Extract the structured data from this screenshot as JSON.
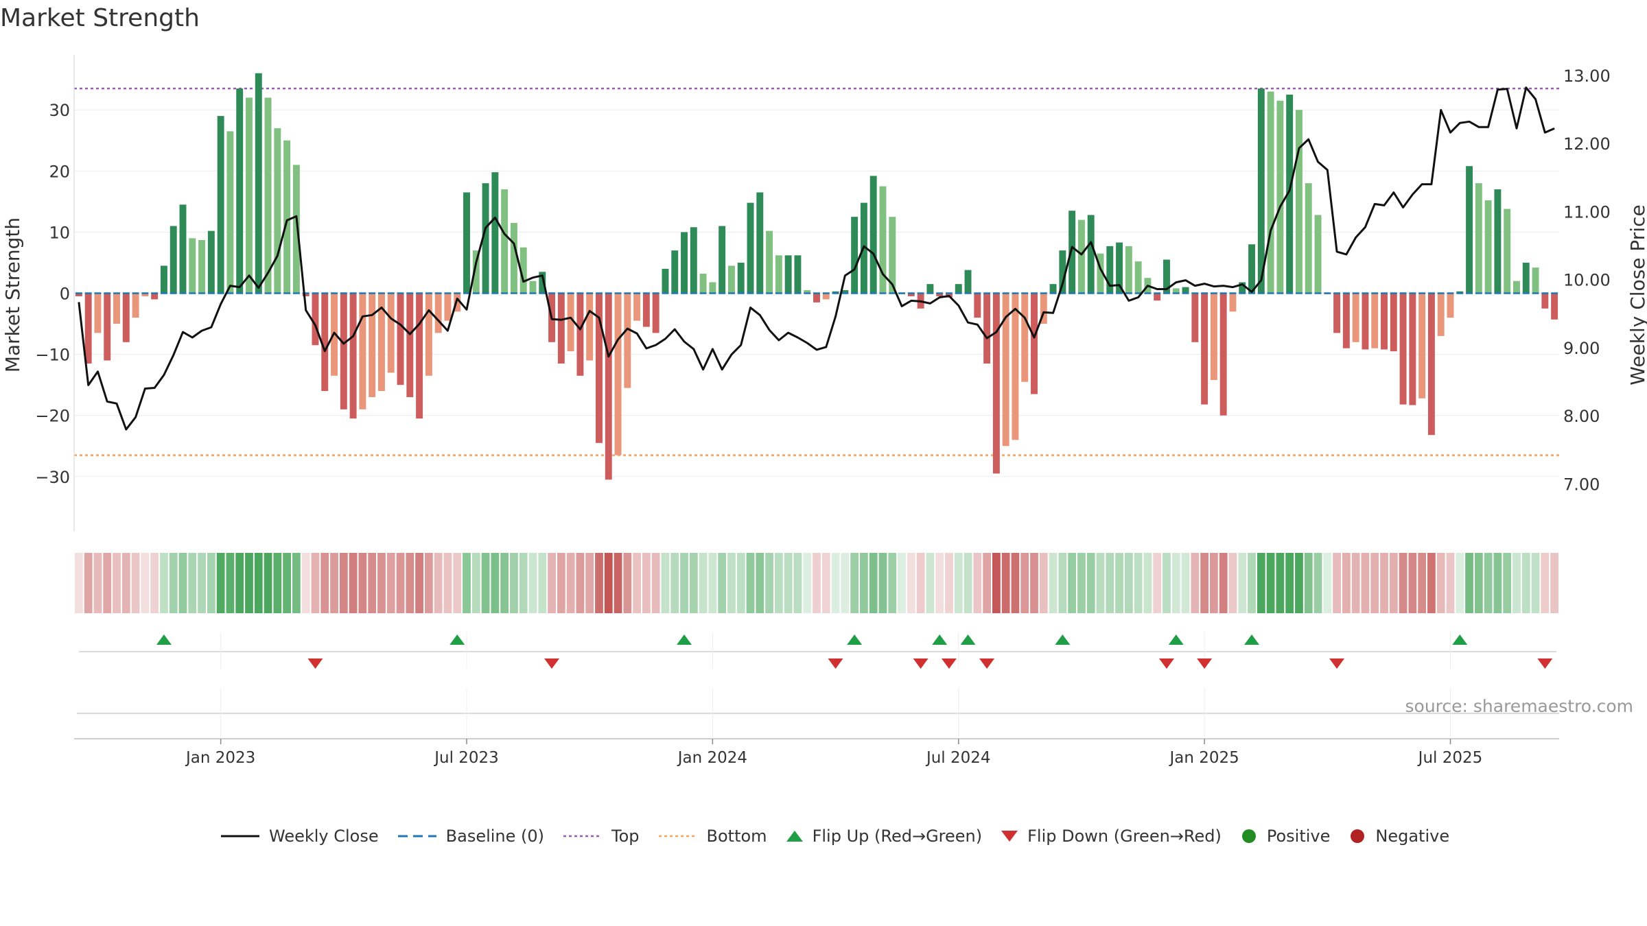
{
  "colors": {
    "green_strong": "#2e8b57",
    "green_light": "#80c080",
    "red_strong": "#cd5c5c",
    "red_light": "#e9967a",
    "top": "#9b59b6",
    "bottom": "#f4a460",
    "baseline": "#1f77b4",
    "flip_up": "#1f9e45",
    "flip_down": "#d03030",
    "close": "#111111",
    "positive": "#228b22",
    "negative": "#b22222"
  },
  "chart_data": {
    "type": "bar",
    "title": "Market Strength",
    "ylabel": "Market Strength",
    "y2label": "Weekly Close Price",
    "ylim": [
      -39,
      39
    ],
    "y2lim": [
      6.3,
      13.3
    ],
    "yticks": [
      "−30",
      "−20",
      "−10",
      "0",
      "10",
      "20",
      "30"
    ],
    "yticks_values": [
      -30,
      -20,
      -10,
      0,
      10,
      20,
      30
    ],
    "y2ticks": [
      "7.00",
      "8.00",
      "9.00",
      "10.00",
      "11.00",
      "12.00",
      "13.00"
    ],
    "y2ticks_values": [
      7,
      8,
      9,
      10,
      11,
      12,
      13
    ],
    "xticks": [
      "Jan 2023",
      "Jul 2023",
      "Jan 2024",
      "Jul 2024",
      "Jan 2025",
      "Jul 2025"
    ],
    "xticks_index": [
      15,
      41,
      67,
      93,
      119,
      145
    ],
    "top_line": 33.5,
    "bottom_line": -26.5,
    "strength": [
      -0.5,
      -11.5,
      -6.5,
      -11,
      -5,
      -8,
      -4,
      -0.5,
      -1,
      4.5,
      11,
      14.5,
      9,
      8.7,
      10.2,
      29,
      26.5,
      33.5,
      32,
      36,
      32,
      27,
      25,
      21,
      -0.5,
      -8.5,
      -16,
      -13.5,
      -19,
      -20.5,
      -19,
      -17,
      -16,
      -13,
      -15,
      -17,
      -20.5,
      -13.5,
      -6.5,
      -4.5,
      -3,
      16.5,
      7,
      18,
      19.8,
      17,
      11.5,
      7.5,
      2,
      3.5,
      -8,
      -11.5,
      -9.5,
      -13.5,
      -11,
      -24.5,
      -30.5,
      -26.5,
      -15.5,
      -4.5,
      -5.5,
      -6.5,
      4,
      7,
      10,
      10.8,
      3.2,
      1.8,
      11,
      4.5,
      5,
      14.8,
      16.5,
      10.2,
      6.2,
      6.2,
      6.2,
      0.5,
      -1.5,
      -1,
      0.3,
      0.5,
      12.5,
      14.8,
      19.2,
      17.5,
      12.5,
      0,
      -0.5,
      -2.5,
      1.5,
      -0.5,
      -0.7,
      1.5,
      3.8,
      -4,
      -11.5,
      -29.5,
      -25,
      -24,
      -14.5,
      -16.5,
      -5,
      1.5,
      7,
      13.5,
      12,
      12.8,
      6.5,
      7.7,
      8.3,
      7.7,
      5.2,
      2.5,
      -1.2,
      5.5,
      0.8,
      1,
      -8,
      -18.2,
      -14.2,
      -20,
      -3,
      1.8,
      8,
      33.5,
      33,
      31.5,
      32.5,
      30,
      18,
      12.8,
      0,
      -6.5,
      -9,
      -8,
      -9.2,
      -9,
      -9.2,
      -9.5,
      -18.2,
      -18.3,
      -17.2,
      -23.2,
      -7,
      -4,
      0.3,
      20.8,
      18,
      15.2,
      17,
      13.8,
      2,
      5,
      4.2,
      -2.5,
      -4.3
    ],
    "weekly_close": [
      9.67,
      8.45,
      8.65,
      8.21,
      8.18,
      7.8,
      7.98,
      8.4,
      8.41,
      8.6,
      8.89,
      9.23,
      9.15,
      9.25,
      9.3,
      9.64,
      9.91,
      9.89,
      10.06,
      9.88,
      10.1,
      10.35,
      10.87,
      10.93,
      9.55,
      9.33,
      8.95,
      9.22,
      9.06,
      9.17,
      9.46,
      9.48,
      9.59,
      9.43,
      9.34,
      9.2,
      9.35,
      9.55,
      9.4,
      9.25,
      9.72,
      9.56,
      10.25,
      10.76,
      10.91,
      10.67,
      10.53,
      9.97,
      10.03,
      10.06,
      9.42,
      9.41,
      9.44,
      9.27,
      9.54,
      9.44,
      8.87,
      9.12,
      9.28,
      9.21,
      8.99,
      9.04,
      9.13,
      9.27,
      9.09,
      8.98,
      8.68,
      8.98,
      8.68,
      8.9,
      9.04,
      9.59,
      9.48,
      9.26,
      9.11,
      9.22,
      9.15,
      9.07,
      8.97,
      9.01,
      9.46,
      10.06,
      10.15,
      10.49,
      10.38,
      10.08,
      9.93,
      9.61,
      9.69,
      9.68,
      9.65,
      9.74,
      9.76,
      9.62,
      9.37,
      9.34,
      9.14,
      9.23,
      9.45,
      9.57,
      9.44,
      9.15,
      9.52,
      9.51,
      9.94,
      10.48,
      10.37,
      10.55,
      10.16,
      9.91,
      9.92,
      9.69,
      9.74,
      9.91,
      9.86,
      9.86,
      9.96,
      9.99,
      9.91,
      9.94,
      9.9,
      9.91,
      9.89,
      9.93,
      9.82,
      9.99,
      10.72,
      11.07,
      11.31,
      11.93,
      12.06,
      11.73,
      11.61,
      10.41,
      10.37,
      10.62,
      10.77,
      11.11,
      11.09,
      11.28,
      11.06,
      11.25,
      11.4,
      11.4,
      12.49,
      12.16,
      12.3,
      12.32,
      12.24,
      12.24,
      12.79,
      12.8,
      12.22,
      12.82,
      12.65,
      12.16,
      12.22
    ],
    "flip_up_index": [
      9,
      40,
      64,
      82,
      91,
      94,
      104,
      116,
      124,
      146
    ],
    "flip_down_index": [
      25,
      50,
      80,
      89,
      92,
      96,
      115,
      119,
      133,
      155
    ]
  },
  "source": "source: sharemaestro.com",
  "legend": [
    {
      "label": "Weekly Close",
      "icon": "line-solid",
      "color": "#111111"
    },
    {
      "label": "Baseline (0)",
      "icon": "line-dashed",
      "color": "#1f77b4"
    },
    {
      "label": "Top",
      "icon": "line-dotted",
      "color": "#9b59b6"
    },
    {
      "label": "Bottom",
      "icon": "line-dotted",
      "color": "#f4a460"
    },
    {
      "label": "Flip Up (Red→Green)",
      "icon": "triangle-up",
      "color": "#1f9e45"
    },
    {
      "label": "Flip Down (Green→Red)",
      "icon": "triangle-down",
      "color": "#d03030"
    },
    {
      "label": "Positive",
      "icon": "dot",
      "color": "#228b22"
    },
    {
      "label": "Negative",
      "icon": "dot",
      "color": "#b22222"
    }
  ]
}
